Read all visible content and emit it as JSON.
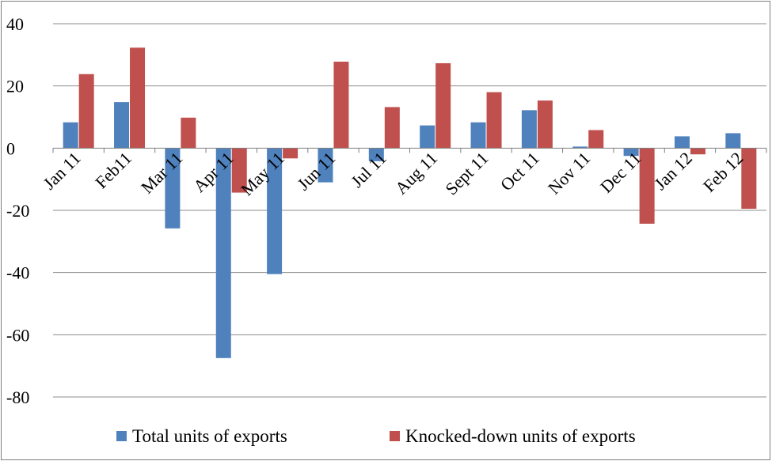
{
  "chart_data": {
    "type": "bar",
    "categories": [
      "Jan 11",
      "Feb11",
      "Mar 11",
      "Apr 11",
      "May 11",
      "Jun 11",
      "Jul 11",
      "Aug 11",
      "Sept 11",
      "Oct 11",
      "Nov 11",
      "Dec 11",
      "Jan 12",
      "Feb 12"
    ],
    "series": [
      {
        "name": "Total units of exports",
        "color": "#4f81bd",
        "values": [
          8.3,
          14.8,
          -25.8,
          -67.5,
          -40.5,
          -11,
          -4.2,
          7.3,
          8.3,
          12.2,
          0.5,
          -2.5,
          3.8,
          4.8
        ]
      },
      {
        "name": "Knocked-down units of exports",
        "color": "#c0504d",
        "values": [
          23.8,
          32.3,
          9.8,
          -14.3,
          -3.3,
          27.8,
          13.2,
          27.3,
          18,
          15.3,
          5.8,
          -24.3,
          -2,
          -19.5
        ]
      }
    ],
    "ylim": [
      -80,
      40
    ],
    "yticks": [
      40,
      20,
      0,
      -20,
      -40,
      -60,
      -80
    ],
    "grid": true,
    "legend": "bottom",
    "title": "",
    "xlabel": "",
    "ylabel": ""
  }
}
